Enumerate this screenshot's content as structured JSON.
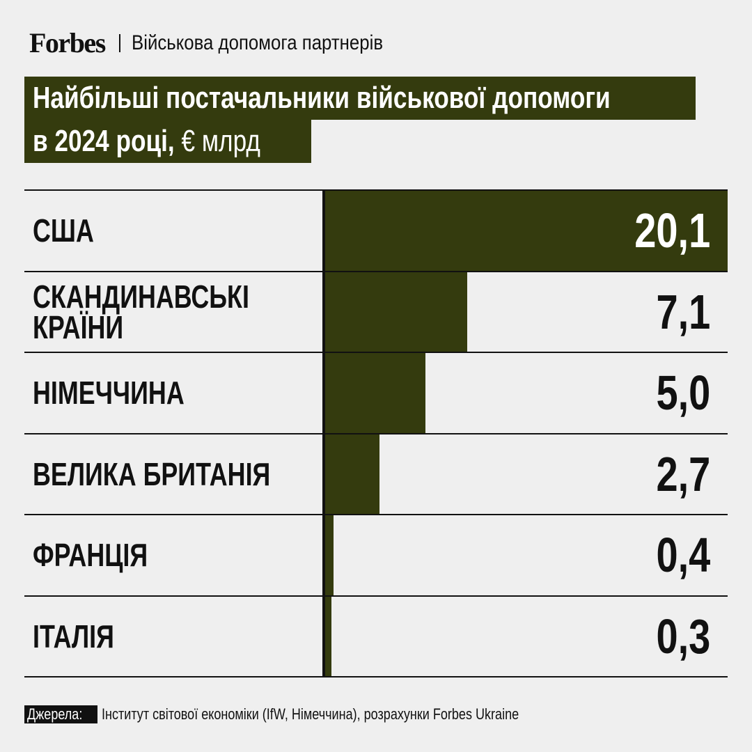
{
  "header": {
    "logo": "Forbes",
    "rubric": "Військова допомога партнерів"
  },
  "title": {
    "line1": "Найбільші постачальники військової допомоги",
    "line2_main": "в 2024 році,",
    "line2_unit": "€ млрд"
  },
  "chart_data": {
    "type": "bar",
    "orientation": "horizontal",
    "title": "Найбільші постачальники військової допомоги в 2024 році, € млрд",
    "categories": [
      "США",
      "СКАНДИНАВСЬКІ КРАЇНИ",
      "НІМЕЧЧИНА",
      "ВЕЛИКА БРИТАНІЯ",
      "ФРАНЦІЯ",
      "ІТАЛІЯ"
    ],
    "category_labels": [
      "США",
      "СКАНДИНАВСЬКІ\nКРАЇНИ",
      "НІМЕЧЧИНА",
      "ВЕЛИКА БРИТАНІЯ",
      "ФРАНЦІЯ",
      "ІТАЛІЯ"
    ],
    "values": [
      20.1,
      7.1,
      5.0,
      2.7,
      0.4,
      0.3
    ],
    "value_labels": [
      "20,1",
      "7,1",
      "5,0",
      "2,7",
      "0,4",
      "0,3"
    ],
    "xlim": [
      0,
      20.1
    ],
    "grid": false,
    "colors": {
      "bar": "#343b0e",
      "text": "#111111",
      "background": "#efefef"
    }
  },
  "footer": {
    "source_label": "Джерела:",
    "source_text": "Інститут світової економіки (IfW, Німеччина), розрахунки Forbes Ukraine"
  }
}
